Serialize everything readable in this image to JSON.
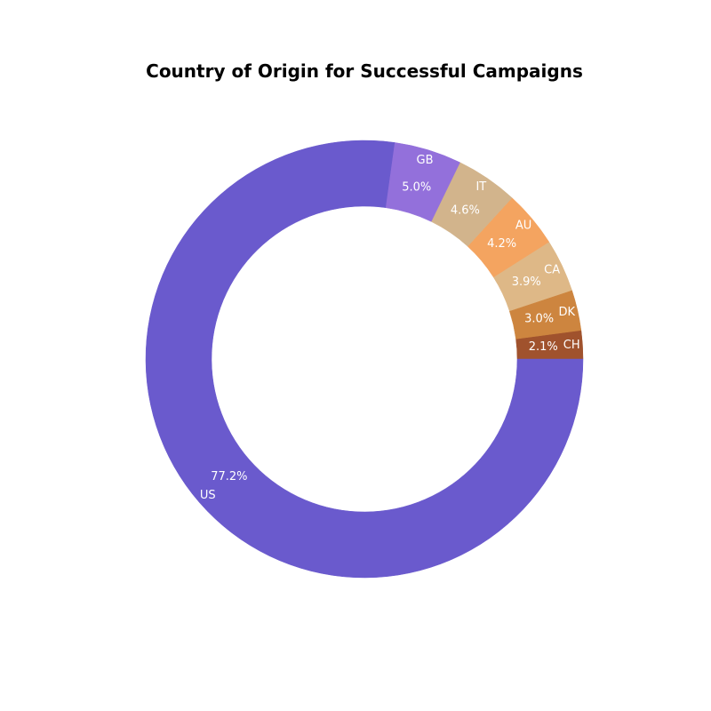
{
  "chart_data": {
    "type": "pie",
    "style": "donut",
    "title": "Country of Origin for Successful Campaigns",
    "categories": [
      "CH",
      "DK",
      "CA",
      "AU",
      "IT",
      "GB",
      "US"
    ],
    "values": [
      2.1,
      3.0,
      3.9,
      4.2,
      4.6,
      5.0,
      77.2
    ],
    "value_labels": [
      "2.1%",
      "3.0%",
      "3.9%",
      "4.2%",
      "4.6%",
      "5.0%",
      "77.2%"
    ],
    "colors": [
      "#a0522d",
      "#cd853f",
      "#deb887",
      "#f4a460",
      "#d2b48c",
      "#9370db",
      "#6a5acd"
    ],
    "start_angle_deg": 0,
    "direction": "counterclockwise"
  }
}
